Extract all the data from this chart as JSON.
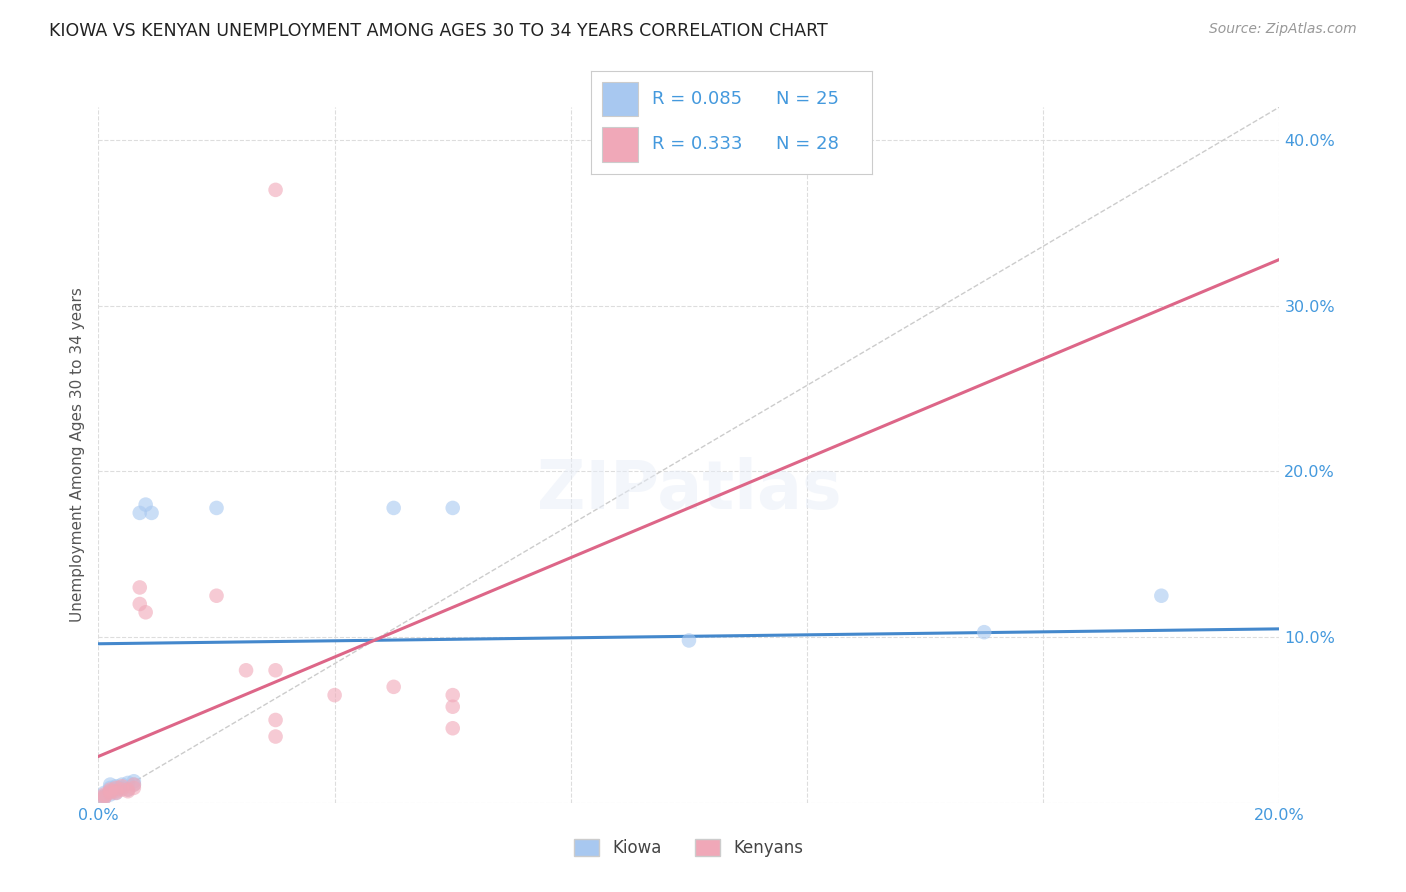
{
  "title": "KIOWA VS KENYAN UNEMPLOYMENT AMONG AGES 30 TO 34 YEARS CORRELATION CHART",
  "source": "Source: ZipAtlas.com",
  "ylabel": "Unemployment Among Ages 30 to 34 years",
  "xlim": [
    0.0,
    0.2
  ],
  "ylim": [
    0.0,
    0.42
  ],
  "kiowa_color": "#a8c8f0",
  "kenyan_color": "#f0a8b8",
  "kiowa_line_color": "#4488cc",
  "kenyan_line_color": "#dd6688",
  "diagonal_color": "#cccccc",
  "kiowa_line_x0": 0.0,
  "kiowa_line_y0": 0.096,
  "kiowa_line_x1": 0.2,
  "kiowa_line_y1": 0.105,
  "kenyan_line_x0": 0.0,
  "kenyan_line_y0": 0.028,
  "kenyan_line_x1": 0.08,
  "kenyan_line_y1": 0.148,
  "kiowa_x": [
    0.001,
    0.001,
    0.001,
    0.002,
    0.002,
    0.002,
    0.002,
    0.003,
    0.003,
    0.003,
    0.004,
    0.004,
    0.005,
    0.005,
    0.006,
    0.006,
    0.007,
    0.008,
    0.009,
    0.02,
    0.05,
    0.06,
    0.1,
    0.15,
    0.18
  ],
  "kiowa_y": [
    0.004,
    0.006,
    0.003,
    0.007,
    0.005,
    0.009,
    0.011,
    0.006,
    0.008,
    0.01,
    0.011,
    0.009,
    0.012,
    0.008,
    0.011,
    0.013,
    0.175,
    0.18,
    0.175,
    0.178,
    0.178,
    0.178,
    0.098,
    0.103,
    0.125
  ],
  "kenyan_x": [
    0.001,
    0.001,
    0.001,
    0.002,
    0.002,
    0.002,
    0.003,
    0.003,
    0.003,
    0.004,
    0.004,
    0.005,
    0.005,
    0.006,
    0.006,
    0.007,
    0.007,
    0.008,
    0.02,
    0.025,
    0.03,
    0.04,
    0.05,
    0.06,
    0.06,
    0.06,
    0.03,
    0.03
  ],
  "kenyan_y": [
    0.003,
    0.004,
    0.005,
    0.006,
    0.007,
    0.008,
    0.006,
    0.007,
    0.009,
    0.008,
    0.01,
    0.007,
    0.008,
    0.009,
    0.011,
    0.12,
    0.13,
    0.115,
    0.125,
    0.08,
    0.08,
    0.065,
    0.07,
    0.065,
    0.058,
    0.045,
    0.05,
    0.04
  ],
  "kenyan_outlier_x": [
    0.03
  ],
  "kenyan_outlier_y": [
    0.37
  ],
  "marker_size": 110,
  "alpha": 0.6,
  "legend_r1": "R = 0.085",
  "legend_n1": "N = 25",
  "legend_r2": "R = 0.333",
  "legend_n2": "N = 28",
  "legend_label1": "Kiowa",
  "legend_label2": "Kenyans",
  "title_fontsize": 12.5,
  "axis_label_fontsize": 11,
  "tick_fontsize": 11.5,
  "legend_fontsize": 13,
  "source_fontsize": 10,
  "text_color": "#4499dd",
  "title_color": "#222222",
  "grid_color": "#dddddd",
  "axis_label_color": "#555555"
}
